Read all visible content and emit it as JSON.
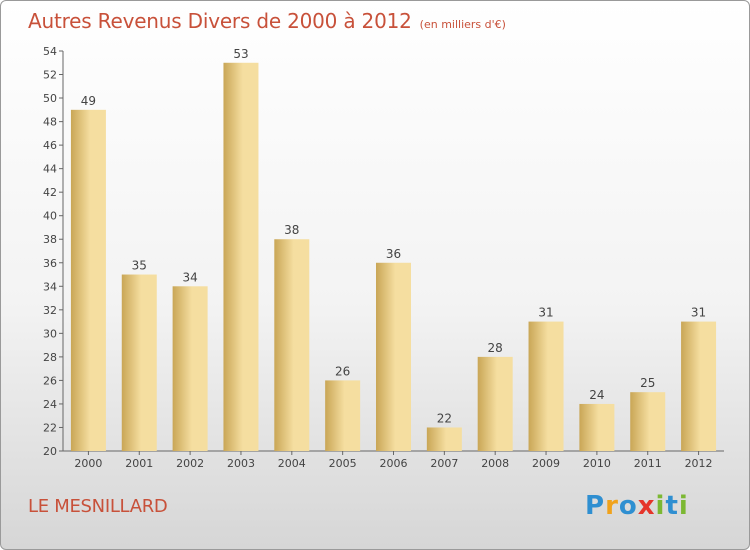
{
  "title": "Autres Revenus Divers de 2000 à 2012",
  "unit": "(en milliers d'€)",
  "commune": "LE MESNILLARD",
  "logo": {
    "letters": [
      {
        "ch": "P",
        "color": "#2f8fd1"
      },
      {
        "ch": "r",
        "color": "#f0a21c"
      },
      {
        "ch": "o",
        "color": "#2f8fd1"
      },
      {
        "ch": "x",
        "color": "#e5352b"
      },
      {
        "ch": "i",
        "color": "#7cb833"
      },
      {
        "ch": "t",
        "color": "#2f8fd1"
      },
      {
        "ch": "i",
        "color": "#7cb833"
      }
    ]
  },
  "colors": {
    "bar_light": "#f5dea0",
    "bar_dark": "#c9a656",
    "title": "#c8513a"
  },
  "chart_data": {
    "type": "bar",
    "categories": [
      "2000",
      "2001",
      "2002",
      "2003",
      "2004",
      "2005",
      "2006",
      "2007",
      "2008",
      "2009",
      "2010",
      "2011",
      "2012"
    ],
    "values": [
      49,
      35,
      34,
      53,
      38,
      26,
      36,
      22,
      28,
      31,
      24,
      25,
      31
    ],
    "title": "Autres Revenus Divers de 2000 à 2012",
    "ylim": [
      20,
      54
    ],
    "yticks": [
      20,
      22,
      24,
      26,
      28,
      30,
      32,
      34,
      36,
      38,
      40,
      42,
      44,
      46,
      48,
      50,
      52,
      54
    ],
    "grid": false
  }
}
